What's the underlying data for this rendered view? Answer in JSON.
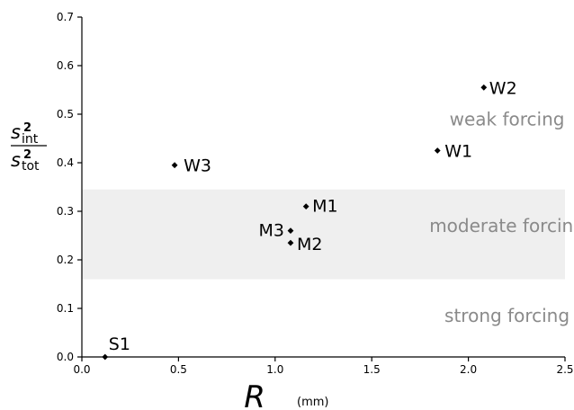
{
  "chart_data": {
    "type": "scatter",
    "title": "",
    "xlabel": "R",
    "xlabel_unit": "(mm)",
    "ylabel": {
      "numerator_base": "s",
      "numerator_exp": "2",
      "numerator_sub": "int",
      "denominator_base": "s",
      "denominator_exp": "2",
      "denominator_sub": "tot"
    },
    "xlim": [
      0.0,
      2.5
    ],
    "ylim": [
      0.0,
      0.7
    ],
    "xticks": [
      "0.0",
      "0.5",
      "1.0",
      "1.5",
      "2.0",
      "2.5"
    ],
    "yticks": [
      "0.0",
      "0.1",
      "0.2",
      "0.3",
      "0.4",
      "0.5",
      "0.6",
      "0.7"
    ],
    "grid": false,
    "legend": "none",
    "marker_color": "#000000",
    "points": [
      {
        "label": "S1",
        "x": 0.12,
        "y": 0.0
      },
      {
        "label": "M1",
        "x": 1.16,
        "y": 0.31
      },
      {
        "label": "M2",
        "x": 1.08,
        "y": 0.235
      },
      {
        "label": "M3",
        "x": 1.08,
        "y": 0.26
      },
      {
        "label": "W1",
        "x": 1.84,
        "y": 0.425
      },
      {
        "label": "W2",
        "x": 2.08,
        "y": 0.555
      },
      {
        "label": "W3",
        "x": 0.48,
        "y": 0.395
      }
    ],
    "bands": [
      {
        "label": "moderate forcing",
        "y0": 0.16,
        "y1": 0.345,
        "color": "#efefef"
      }
    ],
    "annotations": [
      {
        "text": "weak forcing",
        "x": 2.2,
        "y": 0.49
      },
      {
        "text": "moderate forcing",
        "x": 2.2,
        "y": 0.27
      },
      {
        "text": "strong forcing",
        "x": 2.2,
        "y": 0.085
      }
    ]
  }
}
